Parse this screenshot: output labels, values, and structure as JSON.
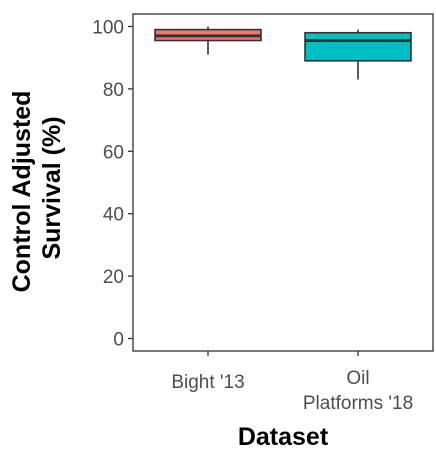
{
  "chart_data": {
    "type": "box",
    "xlabel": "Dataset",
    "ylabel": [
      "Control Adjusted",
      "Survival (%)"
    ],
    "ylim": [
      -4,
      104
    ],
    "yticks": [
      0,
      20,
      40,
      60,
      80,
      100
    ],
    "ytick_labels": [
      "0",
      "20",
      "40",
      "60",
      "80",
      "100"
    ],
    "grid": false,
    "legend": "none",
    "categories": [
      {
        "label": [
          "Bight '13"
        ],
        "color": "#F8766D",
        "stats": {
          "min": 91,
          "q1": 95.5,
          "median": 97,
          "q3": 99,
          "max": 100
        }
      },
      {
        "label": [
          "Oil",
          "Platforms '18"
        ],
        "color": "#00BFC4",
        "stats": {
          "min": 83,
          "q1": 89,
          "median": 95.5,
          "q3": 98,
          "max": 99
        }
      }
    ]
  }
}
